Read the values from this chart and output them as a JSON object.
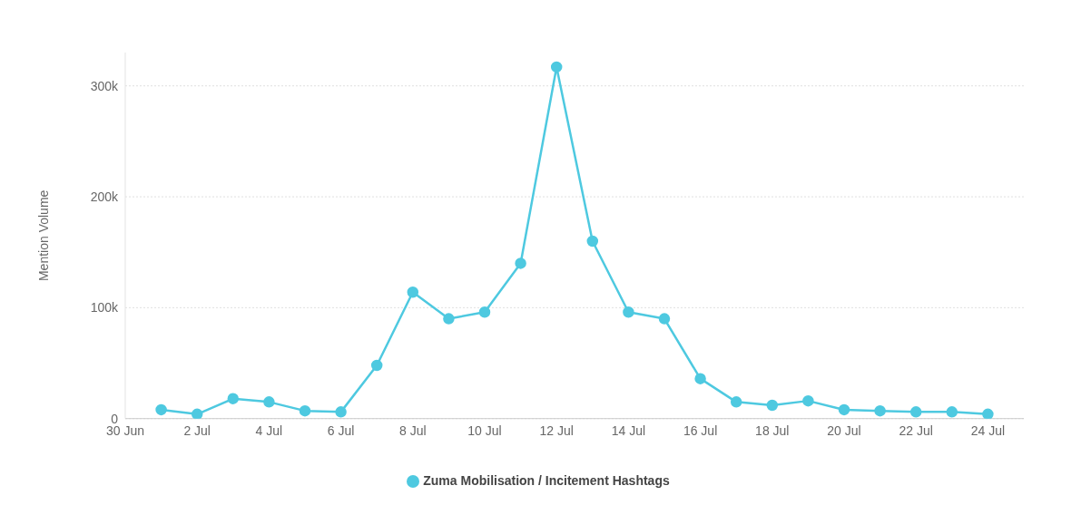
{
  "chart_data": {
    "type": "line",
    "ylabel": "Mention Volume",
    "x": [
      "--07-01",
      "--07-02",
      "--07-03",
      "--07-04",
      "--07-05",
      "--07-06",
      "--07-07",
      "--07-08",
      "--07-09",
      "--07-10",
      "--07-11",
      "--07-12",
      "--07-13",
      "--07-14",
      "--07-15",
      "--07-16",
      "--07-17",
      "--07-18",
      "--07-19",
      "--07-20",
      "--07-21",
      "--07-22",
      "--07-23",
      "--07-24"
    ],
    "series": [
      {
        "name": "Zuma Mobilisation / Incitement Hashtags",
        "color": "#4ec9e0",
        "values": [
          8000,
          4000,
          18000,
          15000,
          7000,
          6000,
          48000,
          114000,
          90000,
          96000,
          140000,
          317000,
          160000,
          96000,
          90000,
          36000,
          15000,
          12000,
          16000,
          8000,
          7000,
          6000,
          6000,
          4000
        ]
      }
    ],
    "xlim": [
      "--06-30",
      "--07-25"
    ],
    "xticks": [
      {
        "value": "--06-30",
        "label": "30 Jun"
      },
      {
        "value": "--07-02",
        "label": "2 Jul"
      },
      {
        "value": "--07-04",
        "label": "4 Jul"
      },
      {
        "value": "--07-06",
        "label": "6 Jul"
      },
      {
        "value": "--07-08",
        "label": "8 Jul"
      },
      {
        "value": "--07-10",
        "label": "10 Jul"
      },
      {
        "value": "--07-12",
        "label": "12 Jul"
      },
      {
        "value": "--07-14",
        "label": "14 Jul"
      },
      {
        "value": "--07-16",
        "label": "16 Jul"
      },
      {
        "value": "--07-18",
        "label": "18 Jul"
      },
      {
        "value": "--07-20",
        "label": "20 Jul"
      },
      {
        "value": "--07-22",
        "label": "22 Jul"
      },
      {
        "value": "--07-24",
        "label": "24 Jul"
      }
    ],
    "ylim": [
      0,
      330000
    ],
    "yticks": [
      {
        "value": 0,
        "label": "0"
      },
      {
        "value": 100000,
        "label": "100k"
      },
      {
        "value": 200000,
        "label": "200k"
      },
      {
        "value": 300000,
        "label": "300k"
      }
    ],
    "grid": "y",
    "legend": "bottom",
    "marker": "circle",
    "line_style": "solid"
  }
}
